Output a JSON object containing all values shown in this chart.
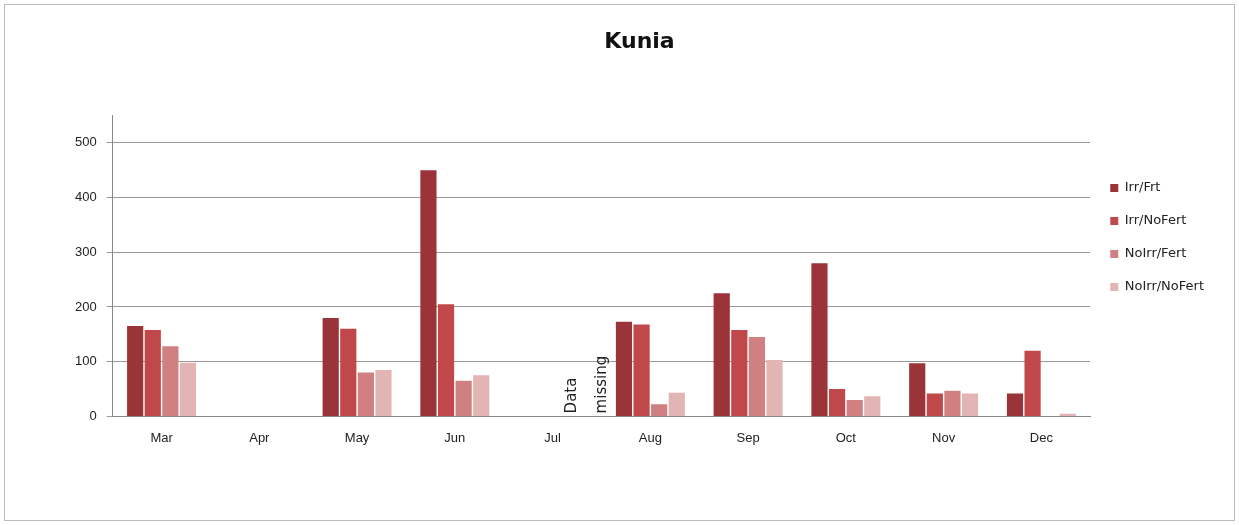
{
  "chart_data": {
    "type": "bar",
    "title": "Kunia",
    "categories": [
      "Mar",
      "Apr",
      "May",
      "Jun",
      "Jul",
      "Aug",
      "Sep",
      "Oct",
      "Nov",
      "Dec"
    ],
    "series": [
      {
        "name": "Irr/Frt",
        "color": "#9b3438",
        "values": [
          165,
          null,
          180,
          450,
          null,
          173,
          225,
          280,
          97,
          42
        ]
      },
      {
        "name": "Irr/NoFert",
        "color": "#c0474a",
        "values": [
          158,
          null,
          160,
          205,
          null,
          168,
          158,
          50,
          42,
          120
        ]
      },
      {
        "name": "NoIrr/Fert",
        "color": "#d08080",
        "values": [
          128,
          null,
          80,
          65,
          null,
          22,
          145,
          30,
          47,
          null
        ]
      },
      {
        "name": "NoIrr/NoFert",
        "color": "#e2b4b4",
        "values": [
          98,
          null,
          85,
          75,
          null,
          43,
          103,
          37,
          42,
          5
        ]
      }
    ],
    "annotations": [
      "Data missing"
    ],
    "ylim": [
      0,
      550
    ],
    "yticks": [
      0,
      100,
      200,
      300,
      400,
      500
    ],
    "grid": "y",
    "legend": "right"
  }
}
